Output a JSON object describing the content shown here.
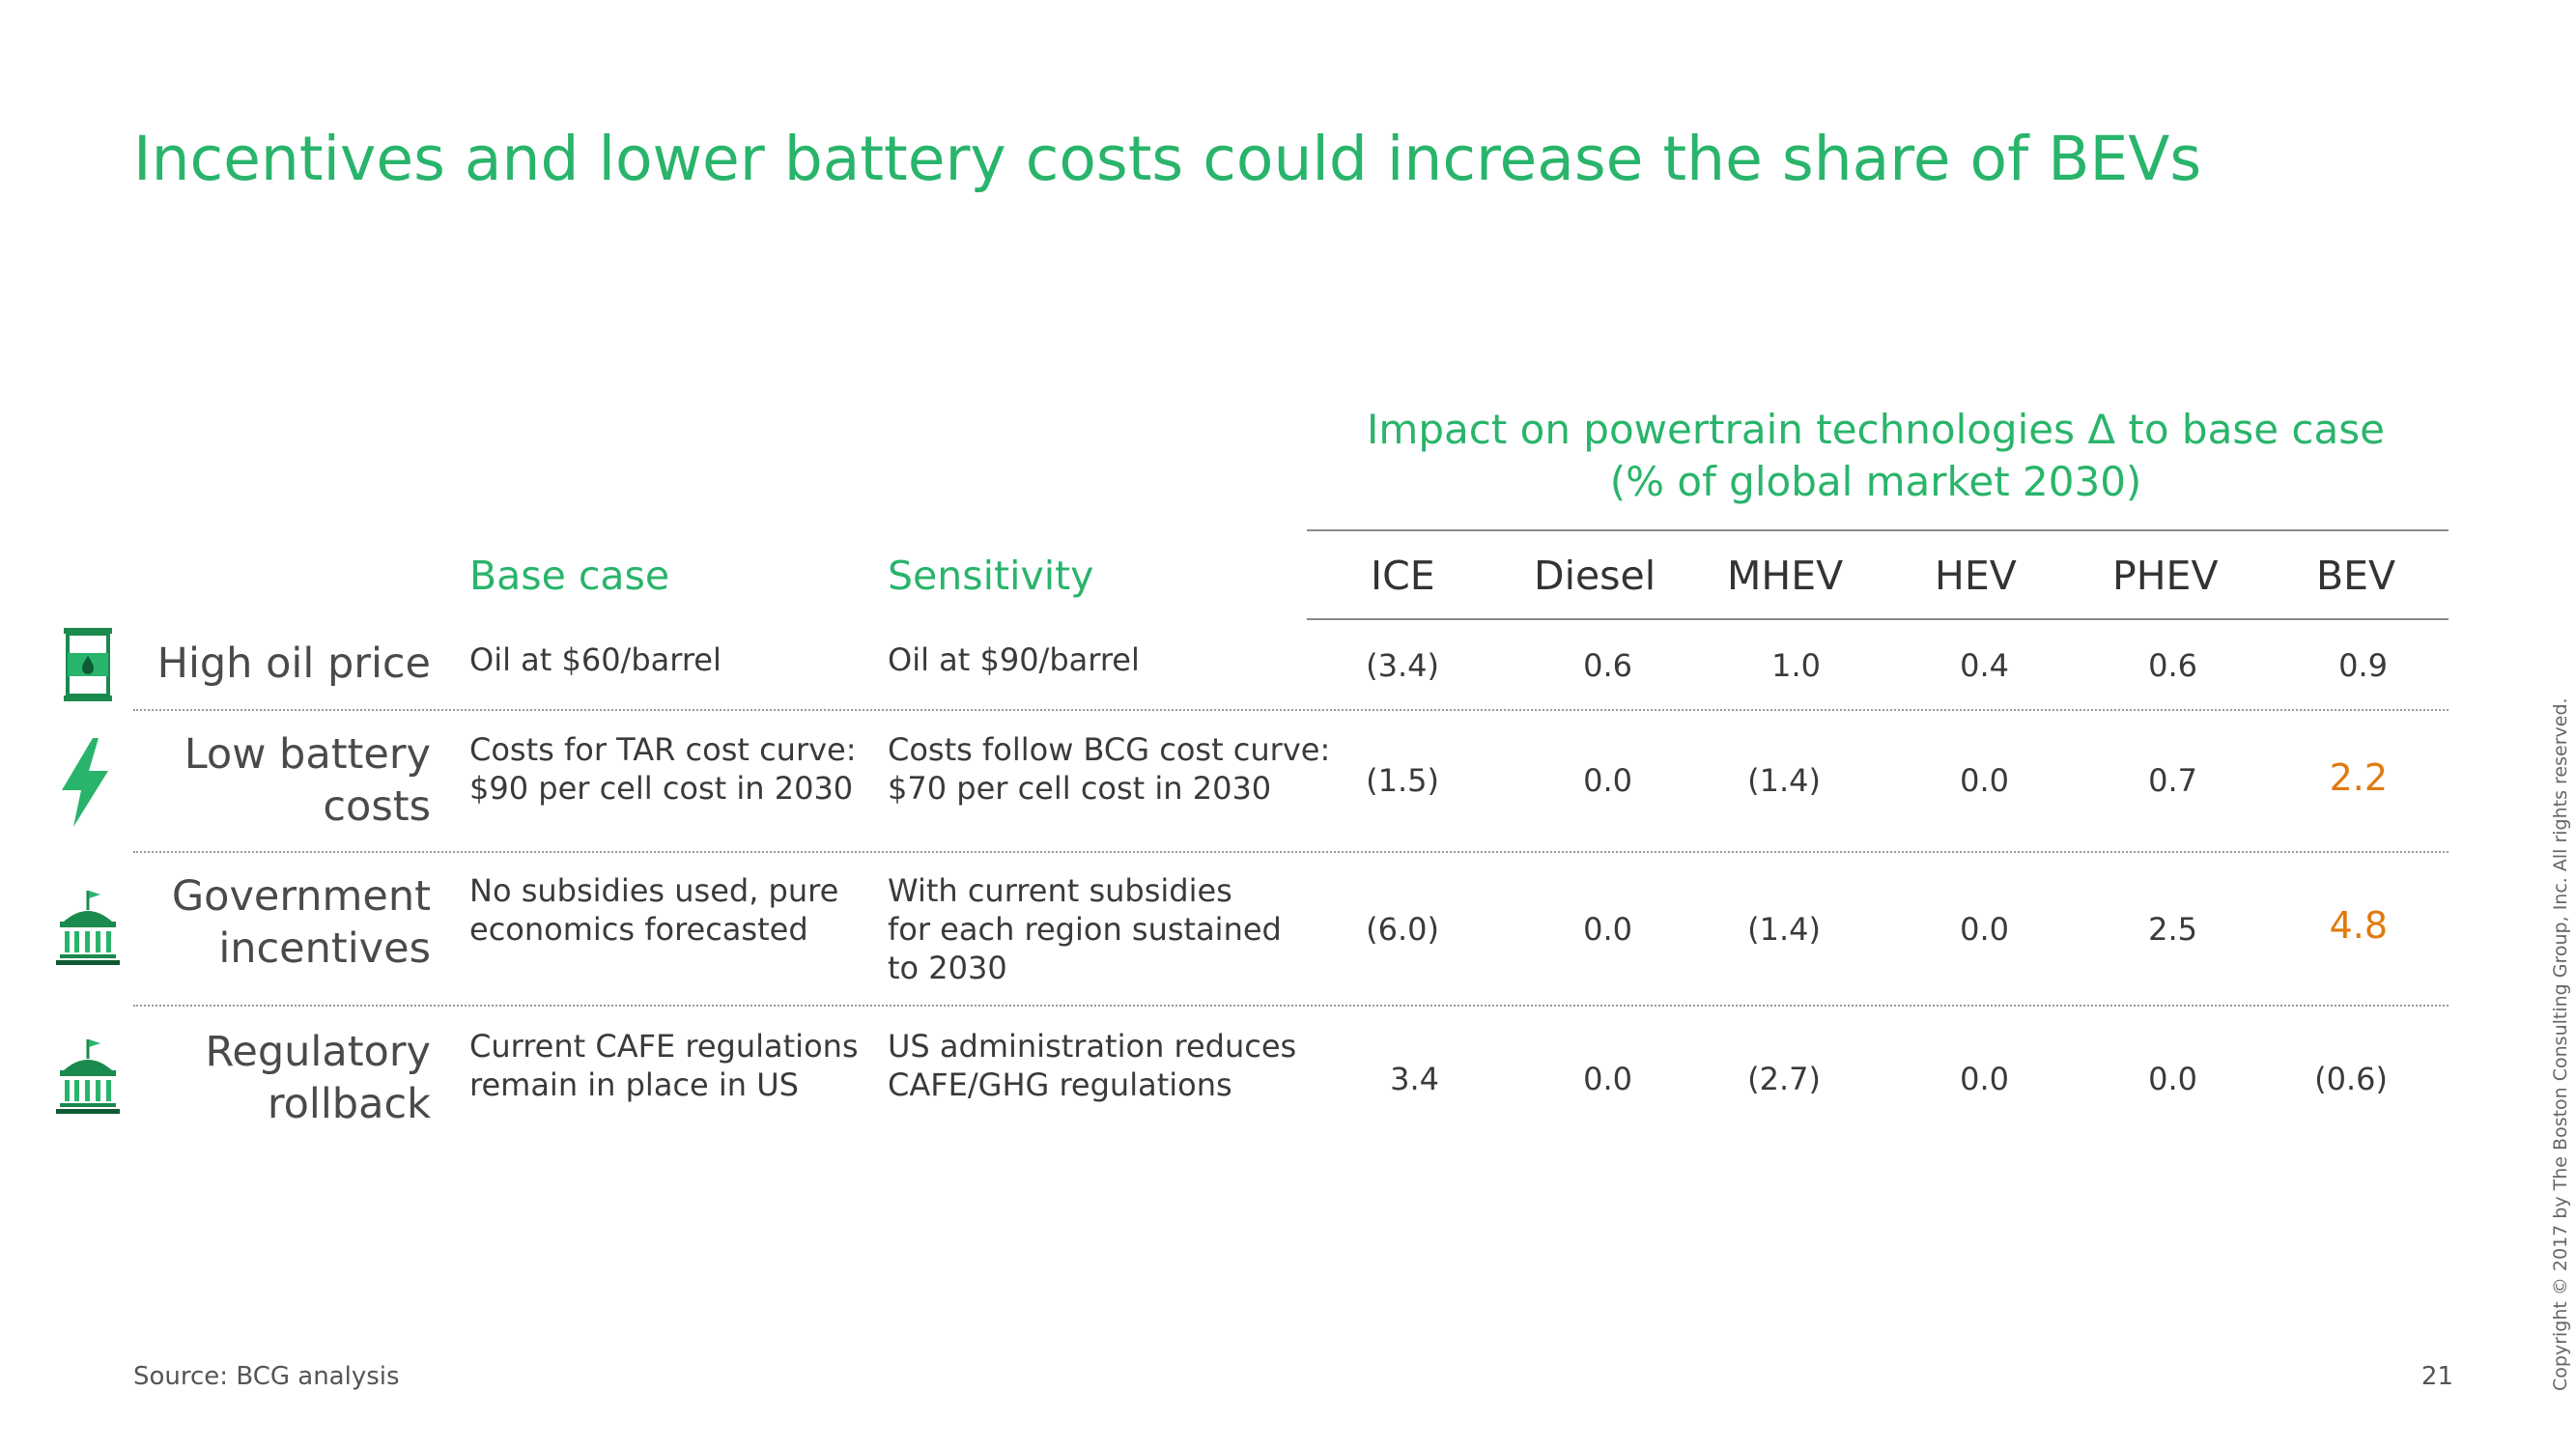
{
  "title": "Incentives and lower battery costs could increase the share of BEVs",
  "impact_header": {
    "line1": "Impact on powertrain technologies Δ to base case",
    "line2": "(% of global market 2030)"
  },
  "columns": {
    "base_case": "Base case",
    "sensitivity": "Sensitivity",
    "tech": [
      "ICE",
      "Diesel",
      "MHEV",
      "HEV",
      "PHEV",
      "BEV"
    ]
  },
  "rows": [
    {
      "label": [
        "High oil price"
      ],
      "icon": "oil-barrel-icon",
      "base": [
        "Oil at $60/barrel"
      ],
      "sensitivity": [
        "Oil at $90/barrel"
      ],
      "values": [
        "(3.4)",
        "0.6",
        "1.0",
        "0.4",
        "0.6",
        "0.9"
      ]
    },
    {
      "label": [
        "Low battery",
        "costs"
      ],
      "icon": "lightning-bolt-icon",
      "base": [
        "Costs for TAR cost curve:",
        "$90 per cell cost in 2030"
      ],
      "sensitivity": [
        "Costs follow BCG cost curve:",
        "$70 per cell cost in 2030"
      ],
      "values": [
        "(1.5)",
        "0.0",
        "(1.4)",
        "0.0",
        "0.7",
        "2.2"
      ]
    },
    {
      "label": [
        "Government",
        "incentives"
      ],
      "icon": "government-building-icon",
      "base": [
        "No subsidies used, pure",
        "economics forecasted"
      ],
      "sensitivity": [
        "With current subsidies",
        "for each region sustained",
        "to 2030"
      ],
      "values": [
        "(6.0)",
        "0.0",
        "(1.4)",
        "0.0",
        "2.5",
        "4.8"
      ]
    },
    {
      "label": [
        "Regulatory",
        "rollback"
      ],
      "icon": "government-building-icon",
      "base": [
        "Current CAFE regulations",
        "remain in place in US"
      ],
      "sensitivity": [
        "US administration reduces",
        "CAFE/GHG regulations"
      ],
      "values": [
        "3.4",
        "0.0",
        "(2.7)",
        "0.0",
        "0.0",
        "(0.6)"
      ]
    }
  ],
  "highlight_color": "#e07a10",
  "accent_color": "#29b46b",
  "source": "Source: BCG analysis",
  "page_number": "21",
  "copyright": "Copyright © 2017 by The Boston Consulting Group, Inc. All rights reserved."
}
